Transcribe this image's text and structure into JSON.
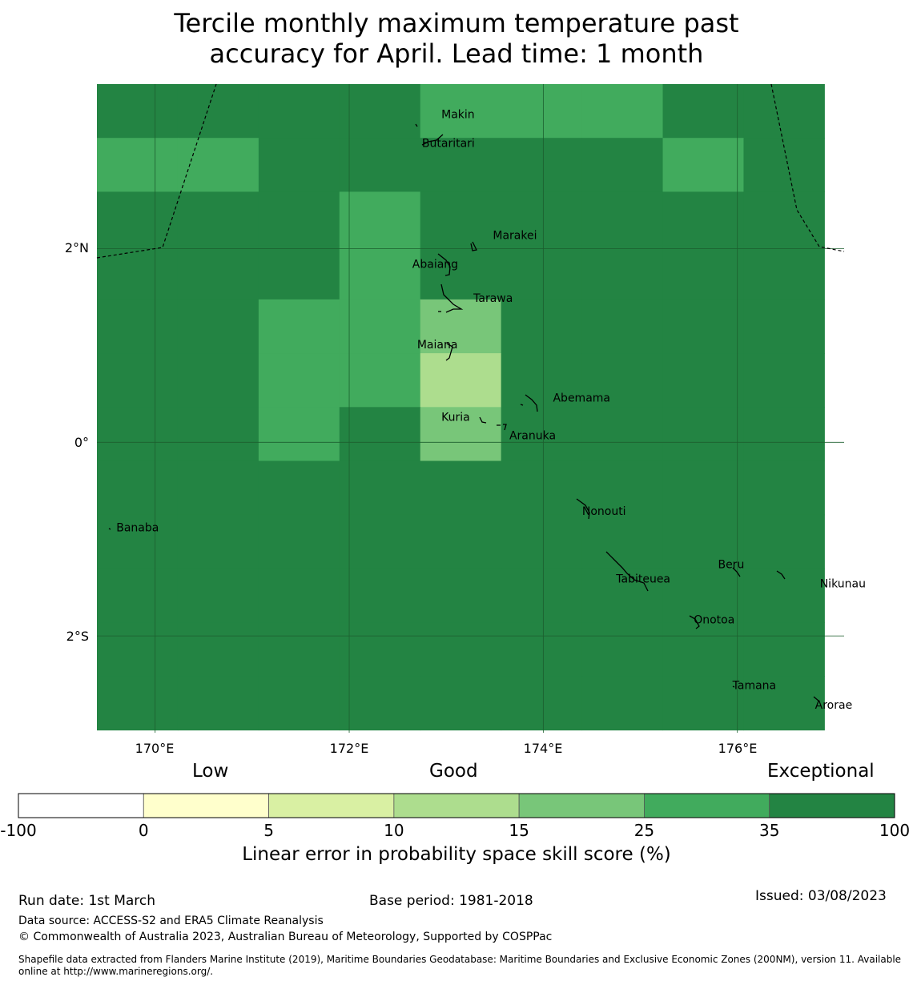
{
  "title_line1": "Tercile monthly maximum temperature past",
  "title_line2": "accuracy for April. Lead time: 1 month",
  "map": {
    "lon_ticks": [
      "170°E",
      "172°E",
      "174°E",
      "176°E"
    ],
    "lat_ticks": [
      "2°N",
      "0°",
      "2°S"
    ],
    "lon_range": [
      169.4,
      177.1
    ],
    "lat_range": [
      -3.0,
      3.7
    ],
    "grid": {
      "lon0": 169.4,
      "lat_top": 3.7,
      "dlon": 0.833,
      "dlat": 0.556,
      "cols": 9,
      "rows": 12,
      "cells": [
        [
          6,
          6,
          6,
          6,
          5,
          5,
          5,
          6,
          6
        ],
        [
          5,
          5,
          6,
          6,
          6,
          6,
          6,
          5,
          6
        ],
        [
          6,
          6,
          6,
          5,
          6,
          6,
          6,
          6,
          6
        ],
        [
          6,
          6,
          6,
          5,
          6,
          6,
          6,
          6,
          6
        ],
        [
          6,
          6,
          5,
          5,
          4,
          6,
          6,
          6,
          6
        ],
        [
          6,
          6,
          5,
          5,
          3,
          6,
          6,
          6,
          6
        ],
        [
          6,
          6,
          5,
          6,
          4,
          6,
          6,
          6,
          6
        ],
        [
          6,
          6,
          6,
          6,
          6,
          6,
          6,
          6,
          6
        ],
        [
          6,
          6,
          6,
          6,
          6,
          6,
          6,
          6,
          6
        ],
        [
          6,
          6,
          6,
          6,
          6,
          6,
          6,
          6,
          6
        ],
        [
          6,
          6,
          6,
          6,
          6,
          6,
          6,
          6,
          6
        ],
        [
          6,
          6,
          6,
          6,
          6,
          6,
          6,
          6,
          6
        ]
      ]
    },
    "islands": [
      {
        "name": "Makin",
        "lon": 172.95,
        "lat": 3.35
      },
      {
        "name": "Butaritari",
        "lon": 172.75,
        "lat": 3.05
      },
      {
        "name": "Marakei",
        "lon": 173.48,
        "lat": 2.1
      },
      {
        "name": "Abaiang",
        "lon": 172.65,
        "lat": 1.8
      },
      {
        "name": "Tarawa",
        "lon": 173.28,
        "lat": 1.45
      },
      {
        "name": "Maiana",
        "lon": 172.7,
        "lat": 0.97
      },
      {
        "name": "Abemama",
        "lon": 174.1,
        "lat": 0.42
      },
      {
        "name": "Kuria",
        "lon": 172.95,
        "lat": 0.22
      },
      {
        "name": "Aranuka",
        "lon": 173.65,
        "lat": 0.03
      },
      {
        "name": "Banaba",
        "lon": 169.6,
        "lat": -0.92
      },
      {
        "name": "Nonouti",
        "lon": 174.4,
        "lat": -0.75
      },
      {
        "name": "Tabiteuea",
        "lon": 174.75,
        "lat": -1.45
      },
      {
        "name": "Beru",
        "lon": 175.8,
        "lat": -1.3
      },
      {
        "name": "Nikunau",
        "lon": 176.85,
        "lat": -1.5
      },
      {
        "name": "Onotoa",
        "lon": 175.55,
        "lat": -1.87
      },
      {
        "name": "Tamana",
        "lon": 175.95,
        "lat": -2.55
      },
      {
        "name": "Arorae",
        "lon": 176.8,
        "lat": -2.75
      }
    ]
  },
  "colorbar": {
    "categories": [
      "Low",
      "Good",
      "Exceptional"
    ],
    "ticks": [
      "-100",
      "0",
      "5",
      "10",
      "15",
      "25",
      "35",
      "100"
    ],
    "colors": [
      "#ffffff",
      "#ffffcc",
      "#d9f0a3",
      "#addd8e",
      "#78c679",
      "#41ab5d",
      "#238443"
    ],
    "label": "Linear error in probability space skill score (%)"
  },
  "footer": {
    "run_date": "Run date: 1st March",
    "base_period": "Base period: 1981-2018",
    "issued": "Issued: 03/08/2023",
    "data_source": "Data source: ACCESS-S2 and ERA5 Climate Reanalysis",
    "copyright": "© Commonwealth of Australia 2023, Australian Bureau of Meteorology, Supported by COSPPac",
    "shapefile": "Shapefile data extracted from Flanders Marine Institute (2019), Maritime Boundaries Geodatabase: Maritime Boundaries and Exclusive Economic Zones (200NM), version 11. Available online at http://www.marineregions.org/."
  }
}
